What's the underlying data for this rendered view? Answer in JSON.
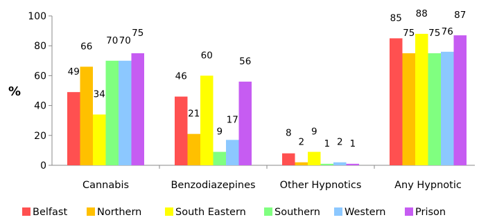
{
  "chart_data": {
    "type": "bar",
    "title": "",
    "xlabel": "",
    "ylabel": "%",
    "ylim": [
      0,
      100
    ],
    "yticks": [
      0,
      20,
      40,
      60,
      80,
      100
    ],
    "grid": false,
    "legend_position": "bottom",
    "categories": [
      "Cannabis",
      "Benzodiazepines",
      "Other Hypnotics",
      "Any Hypnotic"
    ],
    "series": [
      {
        "name": "Belfast",
        "color": "#ff5050",
        "values": [
          49,
          46,
          8,
          85
        ]
      },
      {
        "name": "Northern",
        "color": "#ffc000",
        "values": [
          66,
          21,
          2,
          75
        ]
      },
      {
        "name": "South Eastern",
        "color": "#ffff00",
        "values": [
          34,
          60,
          9,
          88
        ]
      },
      {
        "name": "Southern",
        "color": "#80ff80",
        "values": [
          70,
          9,
          1,
          75
        ]
      },
      {
        "name": "Western",
        "color": "#8cc8ff",
        "values": [
          70,
          17,
          2,
          76
        ]
      },
      {
        "name": "Prison",
        "color": "#c65cf2",
        "values": [
          75,
          56,
          1,
          87
        ]
      }
    ]
  }
}
